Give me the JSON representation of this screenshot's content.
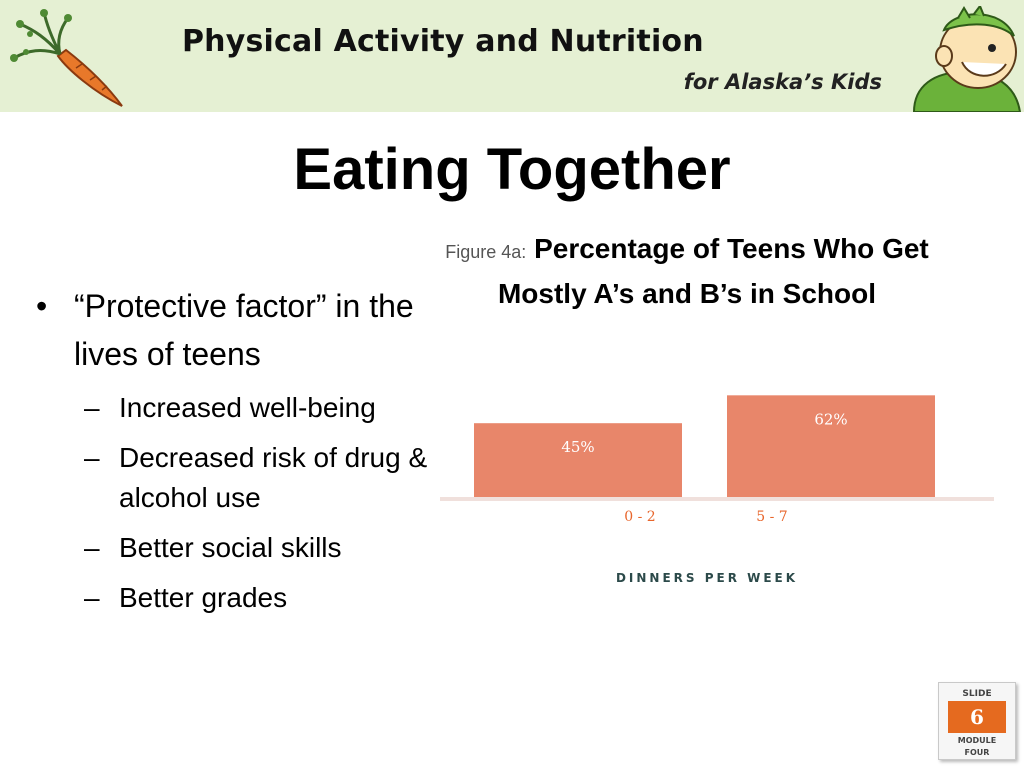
{
  "header": {
    "title": "Physical Activity and Nutrition",
    "subtitle": "for Alaska’s Kids"
  },
  "slide": {
    "title": "Eating Together",
    "bullets": {
      "main": "“Protective factor” in the lives of teens",
      "subs": [
        "Increased well-being",
        "Decreased risk of drug & alcohol use",
        "Better social skills",
        "Better grades"
      ]
    }
  },
  "figure": {
    "label": "Figure 4a:",
    "title": "Percentage of Teens Who Get Mostly A’s and B’s in School"
  },
  "chart_data": {
    "type": "bar",
    "categories": [
      "0 - 2",
      "5 - 7"
    ],
    "values": [
      45,
      62
    ],
    "value_labels": [
      "45%",
      "62%"
    ],
    "xlabel": "DINNERS PER WEEK",
    "ylabel": "",
    "ylim": [
      0,
      100
    ],
    "colors": {
      "bar": "#e8866a",
      "category_text": "#e8662c",
      "axis_label": "#2c4a4a",
      "baseline": "#f0e0dc"
    }
  },
  "badge": {
    "slide_label": "SLIDE",
    "number": "6",
    "module_line1": "MODULE",
    "module_line2": "FOUR"
  }
}
